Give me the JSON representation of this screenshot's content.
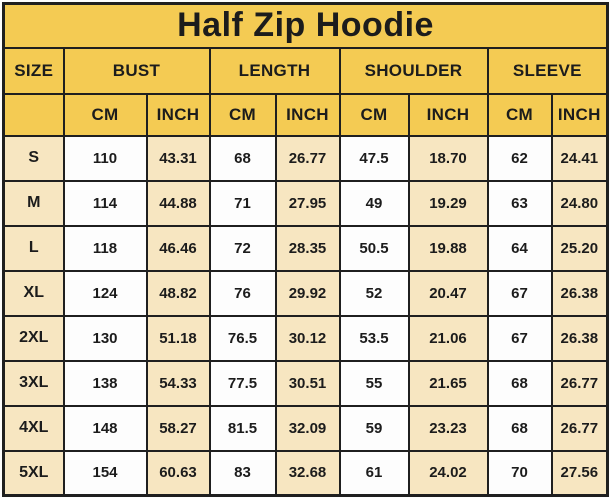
{
  "title": "Half Zip Hoodie",
  "colors": {
    "header_yellow": "#f4cb53",
    "row_cream": "#f7e6c1",
    "row_white": "#fdfdfd",
    "border": "#1f1f1f",
    "text": "#1c1c1c"
  },
  "chart_data": {
    "type": "table",
    "title": "Half Zip Hoodie",
    "header": {
      "size": "SIZE",
      "groups": [
        "BUST",
        "LENGTH",
        "SHOULDER",
        "SLEEVE"
      ],
      "units": [
        "CM",
        "INCH"
      ]
    },
    "columns": [
      "SIZE",
      "BUST CM",
      "BUST INCH",
      "LENGTH CM",
      "LENGTH INCH",
      "SHOULDER CM",
      "SHOULDER INCH",
      "SLEEVE CM",
      "SLEEVE INCH"
    ],
    "rows": [
      {
        "size": "S",
        "values": [
          "110",
          "43.31",
          "68",
          "26.77",
          "47.5",
          "18.70",
          "62",
          "24.41"
        ]
      },
      {
        "size": "M",
        "values": [
          "114",
          "44.88",
          "71",
          "27.95",
          "49",
          "19.29",
          "63",
          "24.80"
        ]
      },
      {
        "size": "L",
        "values": [
          "118",
          "46.46",
          "72",
          "28.35",
          "50.5",
          "19.88",
          "64",
          "25.20"
        ]
      },
      {
        "size": "XL",
        "values": [
          "124",
          "48.82",
          "76",
          "29.92",
          "52",
          "20.47",
          "67",
          "26.38"
        ]
      },
      {
        "size": "2XL",
        "values": [
          "130",
          "51.18",
          "76.5",
          "30.12",
          "53.5",
          "21.06",
          "67",
          "26.38"
        ]
      },
      {
        "size": "3XL",
        "values": [
          "138",
          "54.33",
          "77.5",
          "30.51",
          "55",
          "21.65",
          "68",
          "26.77"
        ]
      },
      {
        "size": "4XL",
        "values": [
          "148",
          "58.27",
          "81.5",
          "32.09",
          "59",
          "23.23",
          "68",
          "26.77"
        ]
      },
      {
        "size": "5XL",
        "values": [
          "154",
          "60.63",
          "83",
          "32.68",
          "61",
          "24.02",
          "70",
          "27.56"
        ]
      }
    ]
  }
}
